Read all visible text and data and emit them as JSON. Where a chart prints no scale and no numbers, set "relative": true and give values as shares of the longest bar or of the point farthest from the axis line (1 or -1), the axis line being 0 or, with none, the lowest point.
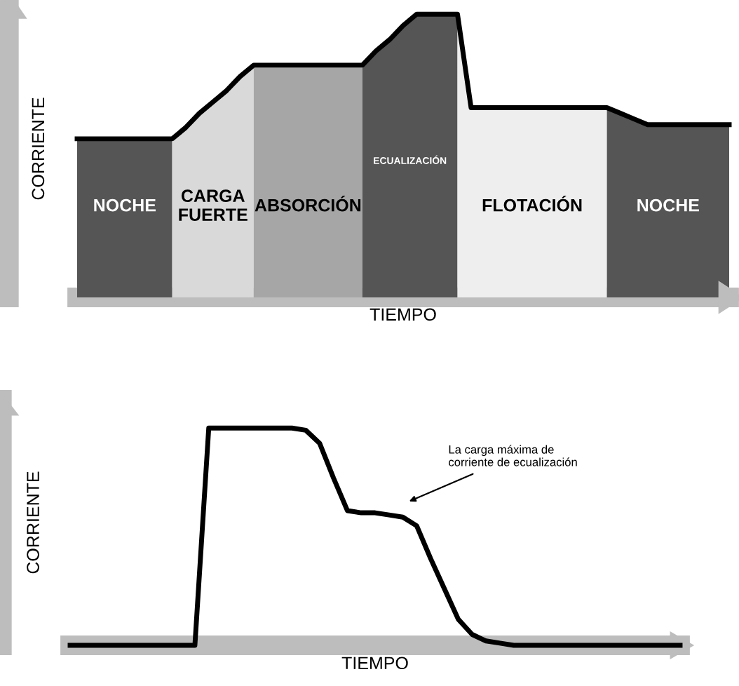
{
  "chart_data": [
    {
      "type": "area",
      "relative": true,
      "xlabel": "TIEMPO",
      "ylabel": "CORRIENTE",
      "tick_labels": false,
      "legend": false,
      "categories": [
        null,
        null,
        null,
        null,
        null,
        null,
        null,
        null,
        null,
        null,
        null,
        null,
        null,
        null,
        null,
        null,
        null,
        null,
        null,
        null,
        null,
        null,
        null,
        null,
        null,
        null,
        null,
        null,
        null,
        null,
        null,
        null,
        null,
        null,
        null,
        null,
        null,
        null,
        null,
        null,
        null,
        null,
        null,
        null,
        null,
        null,
        null,
        null,
        null
      ],
      "series": [
        {
          "name": "NOCHE",
          "color": "#555555",
          "values": [
            0.56,
            0.56,
            0.56,
            0.56,
            0.56,
            0.56,
            0.56,
            0.56,
            null,
            null,
            null,
            null,
            null,
            null,
            null,
            null,
            null,
            null,
            null,
            null,
            null,
            null,
            null,
            null,
            null,
            null,
            null,
            null,
            null,
            null,
            null,
            null,
            null,
            null,
            null,
            null,
            null,
            null,
            null,
            null,
            null,
            null,
            null,
            null,
            null,
            null,
            null,
            null,
            null
          ]
        },
        {
          "name": "CARGA\nFUERTE",
          "color": "#d9d9d9",
          "values": [
            null,
            null,
            null,
            null,
            null,
            null,
            null,
            0.56,
            0.6,
            0.65,
            0.69,
            0.73,
            0.78,
            0.82,
            null,
            null,
            null,
            null,
            null,
            null,
            null,
            null,
            null,
            null,
            null,
            null,
            null,
            null,
            null,
            null,
            null,
            null,
            null,
            null,
            null,
            null,
            null,
            null,
            null,
            null,
            null,
            null,
            null,
            null,
            null,
            null,
            null,
            null,
            null
          ]
        },
        {
          "name": "ABSORCIÓN",
          "color": "#a6a6a6",
          "values": [
            null,
            null,
            null,
            null,
            null,
            null,
            null,
            null,
            null,
            null,
            null,
            null,
            null,
            0.82,
            0.82,
            0.82,
            0.82,
            0.82,
            0.82,
            0.82,
            0.82,
            0.82,
            null,
            null,
            null,
            null,
            null,
            null,
            null,
            null,
            null,
            null,
            null,
            null,
            null,
            null,
            null,
            null,
            null,
            null,
            null,
            null,
            null,
            null,
            null,
            null,
            null,
            null,
            null
          ]
        },
        {
          "name": "ECUALIZACIÓN",
          "color": "#555555",
          "values": [
            null,
            null,
            null,
            null,
            null,
            null,
            null,
            null,
            null,
            null,
            null,
            null,
            null,
            null,
            null,
            null,
            null,
            null,
            null,
            null,
            null,
            0.82,
            0.87,
            0.91,
            0.96,
            1.0,
            1.0,
            1.0,
            1.0,
            null,
            null,
            null,
            null,
            null,
            null,
            null,
            null,
            null,
            null,
            null,
            null,
            null,
            null,
            null,
            null,
            null,
            null,
            null,
            null
          ]
        },
        {
          "name": "FLOTACIÓN",
          "color": "#eeeeee",
          "values": [
            null,
            null,
            null,
            null,
            null,
            null,
            null,
            null,
            null,
            null,
            null,
            null,
            null,
            null,
            null,
            null,
            null,
            null,
            null,
            null,
            null,
            null,
            null,
            null,
            null,
            null,
            null,
            null,
            1.0,
            0.67,
            0.67,
            0.67,
            0.67,
            0.67,
            0.67,
            0.67,
            0.67,
            0.67,
            0.67,
            0.67,
            null,
            null,
            null,
            null,
            null,
            null,
            null,
            null,
            null
          ]
        },
        {
          "name": "NOCHE",
          "color": "#555555",
          "values": [
            null,
            null,
            null,
            null,
            null,
            null,
            null,
            null,
            null,
            null,
            null,
            null,
            null,
            null,
            null,
            null,
            null,
            null,
            null,
            null,
            null,
            null,
            null,
            null,
            null,
            null,
            null,
            null,
            null,
            null,
            null,
            null,
            null,
            null,
            null,
            null,
            null,
            null,
            null,
            0.67,
            0.65,
            0.63,
            0.61,
            0.61,
            0.61,
            0.61,
            0.61,
            0.61,
            0.61
          ]
        },
        {
          "type": "line",
          "color": "#000000",
          "values": [
            0.56,
            0.56,
            0.56,
            0.56,
            0.56,
            0.56,
            0.56,
            0.56,
            0.6,
            0.65,
            0.69,
            0.73,
            0.78,
            0.82,
            0.82,
            0.82,
            0.82,
            0.82,
            0.82,
            0.82,
            0.82,
            0.82,
            0.87,
            0.91,
            0.96,
            1.0,
            1.0,
            1.0,
            1.0,
            0.67,
            0.67,
            0.67,
            0.67,
            0.67,
            0.67,
            0.67,
            0.67,
            0.67,
            0.67,
            0.67,
            0.65,
            0.63,
            0.61,
            0.61,
            0.61,
            0.61,
            0.61,
            0.61,
            0.61
          ]
        }
      ]
    },
    {
      "type": "line",
      "relative": true,
      "xlabel": "TIEMPO",
      "ylabel": "CORRIENTE",
      "tick_labels": false,
      "legend": false,
      "categories": [
        null,
        null,
        null,
        null,
        null,
        null,
        null,
        null,
        null,
        null,
        null,
        null,
        null,
        null,
        null,
        null,
        null,
        null,
        null,
        null,
        null,
        null,
        null,
        null,
        null,
        null,
        null,
        null,
        null,
        null,
        null,
        null,
        null,
        null,
        null,
        null,
        null,
        null,
        null,
        null,
        null,
        null,
        null,
        null,
        null
      ],
      "series": [
        {
          "color": "#000000",
          "values": [
            0,
            0,
            0,
            0,
            0,
            0,
            0,
            0,
            0,
            0,
            1.0,
            1.0,
            1.0,
            1.0,
            1.0,
            1.0,
            1.0,
            0.99,
            0.93,
            0.77,
            0.62,
            0.61,
            0.61,
            0.6,
            0.59,
            0.55,
            0.4,
            0.26,
            0.12,
            0.05,
            0.02,
            0.01,
            0,
            0,
            0,
            0,
            0,
            0,
            0,
            0,
            0,
            0,
            0,
            0,
            0
          ]
        }
      ],
      "annotations": [
        "La carga máxima de\ncorriente de ecualización"
      ]
    }
  ]
}
